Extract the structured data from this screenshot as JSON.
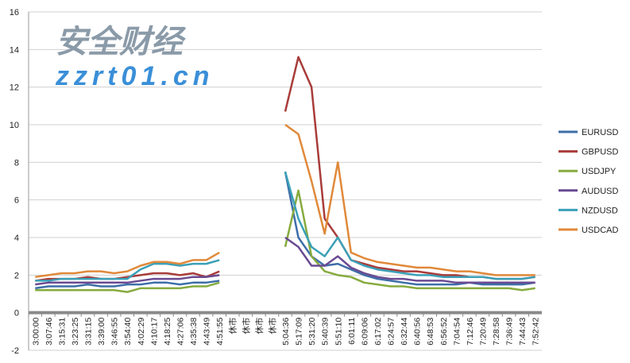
{
  "chart_data": {
    "type": "line",
    "title": "",
    "xlabel": "",
    "ylabel": "",
    "ylim": [
      -2,
      16
    ],
    "yticks": [
      -2,
      0,
      2,
      4,
      6,
      8,
      10,
      12,
      14,
      16
    ],
    "grid": true,
    "legend_position": "right",
    "categories": [
      "3:00:00",
      "3:07:46",
      "3:15:31",
      "3:23:25",
      "3:31:15",
      "3:39:00",
      "3:46:55",
      "3:54:40",
      "4:02:29",
      "4:10:17",
      "4:18:25",
      "4:27:06",
      "4:35:38",
      "4:43:49",
      "4:51:55",
      "休市",
      "休市",
      "休市",
      "休市",
      "5:04:36",
      "5:17:09",
      "5:31:20",
      "5:40:39",
      "5:51:10",
      "6:01:11",
      "6:09:06",
      "6:17:02",
      "6:24:57",
      "6:32:44",
      "6:40:56",
      "6:48:53",
      "6:56:52",
      "7:04:54",
      "7:12:46",
      "7:20:49",
      "7:28:58",
      "7:36:49",
      "7:44:43",
      "7:52:42"
    ],
    "series": [
      {
        "name": "EURUSD",
        "color": "#3d6ea8",
        "values": [
          1.3,
          1.4,
          1.4,
          1.4,
          1.5,
          1.4,
          1.4,
          1.5,
          1.5,
          1.6,
          1.6,
          1.5,
          1.6,
          1.6,
          1.7,
          null,
          null,
          null,
          null,
          7.5,
          4.0,
          3.0,
          2.5,
          2.6,
          2.3,
          2.0,
          1.8,
          1.7,
          1.6,
          1.5,
          1.5,
          1.5,
          1.5,
          1.6,
          1.5,
          1.5,
          1.5,
          1.5,
          1.6
        ]
      },
      {
        "name": "GBPUSD",
        "color": "#a83c3a",
        "values": [
          1.7,
          1.8,
          1.8,
          1.8,
          1.9,
          1.8,
          1.8,
          1.9,
          2.0,
          2.1,
          2.1,
          2.0,
          2.1,
          1.9,
          2.2,
          null,
          null,
          null,
          null,
          10.7,
          13.6,
          12.0,
          5.0,
          4.0,
          2.8,
          2.6,
          2.4,
          2.3,
          2.2,
          2.2,
          2.1,
          2.0,
          2.0,
          1.9,
          1.9,
          1.8,
          1.8,
          1.8,
          1.9
        ]
      },
      {
        "name": "USDJPY",
        "color": "#86ab3e",
        "values": [
          1.2,
          1.2,
          1.2,
          1.2,
          1.2,
          1.2,
          1.2,
          1.1,
          1.3,
          1.3,
          1.3,
          1.3,
          1.4,
          1.4,
          1.6,
          null,
          null,
          null,
          null,
          3.5,
          6.5,
          3.0,
          2.2,
          2.0,
          1.9,
          1.6,
          1.5,
          1.4,
          1.4,
          1.3,
          1.3,
          1.3,
          1.3,
          1.3,
          1.3,
          1.3,
          1.3,
          1.2,
          1.3
        ]
      },
      {
        "name": "AUDUSD",
        "color": "#6a4a92",
        "values": [
          1.5,
          1.6,
          1.6,
          1.6,
          1.6,
          1.6,
          1.6,
          1.6,
          1.7,
          1.8,
          1.8,
          1.8,
          1.9,
          1.9,
          2.0,
          null,
          null,
          null,
          null,
          4.0,
          3.5,
          2.5,
          2.5,
          3.0,
          2.4,
          2.1,
          1.9,
          1.8,
          1.8,
          1.7,
          1.7,
          1.7,
          1.6,
          1.6,
          1.6,
          1.6,
          1.6,
          1.6,
          1.6
        ]
      },
      {
        "name": "NZDUSD",
        "color": "#3ba0b8",
        "values": [
          1.7,
          1.7,
          1.8,
          1.8,
          1.8,
          1.8,
          1.8,
          1.8,
          2.3,
          2.6,
          2.6,
          2.5,
          2.6,
          2.6,
          2.8,
          null,
          null,
          null,
          null,
          7.5,
          5.0,
          3.5,
          3.0,
          4.0,
          2.8,
          2.5,
          2.3,
          2.2,
          2.1,
          2.0,
          2.0,
          1.9,
          1.9,
          1.9,
          1.9,
          1.8,
          1.8,
          1.8,
          1.9
        ]
      },
      {
        "name": "USDCAD",
        "color": "#e0893a",
        "values": [
          1.9,
          2.0,
          2.1,
          2.1,
          2.2,
          2.2,
          2.1,
          2.2,
          2.5,
          2.7,
          2.7,
          2.6,
          2.8,
          2.8,
          3.2,
          null,
          null,
          null,
          null,
          10.0,
          9.5,
          7.0,
          4.2,
          8.0,
          3.2,
          2.9,
          2.7,
          2.6,
          2.5,
          2.4,
          2.4,
          2.3,
          2.2,
          2.2,
          2.1,
          2.0,
          2.0,
          2.0,
          2.0
        ]
      }
    ]
  },
  "watermark": {
    "line1": "安全财经",
    "line2": "zzrt01.cn"
  }
}
